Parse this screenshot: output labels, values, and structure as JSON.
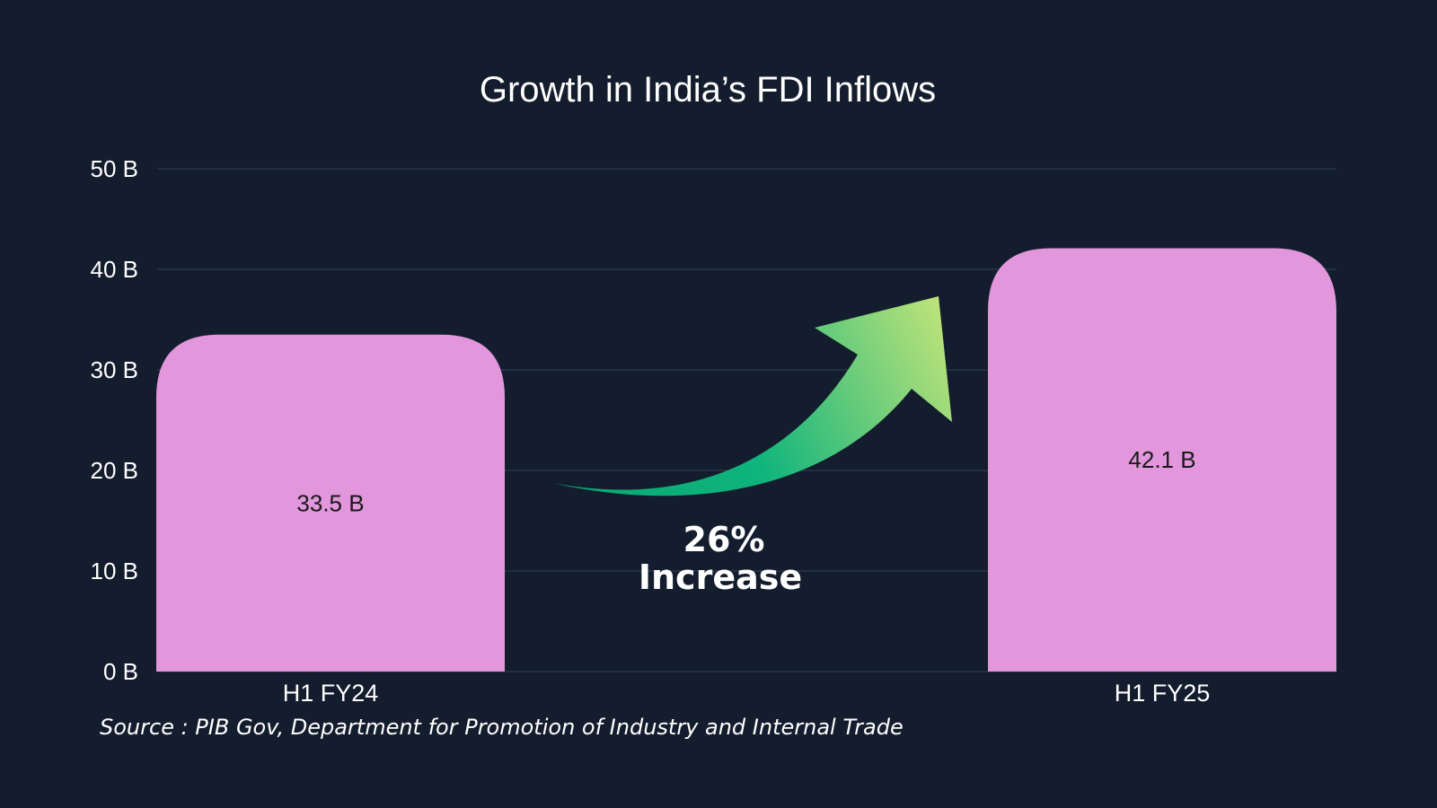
{
  "chart_data": {
    "type": "bar",
    "title": "Growth in India’s FDI Inflows",
    "categories": [
      "H1 FY24",
      "H1 FY25"
    ],
    "values": [
      33.5,
      42.1
    ],
    "value_labels": [
      "33.5 B",
      "42.1 B"
    ],
    "unit": "B",
    "ylim": [
      0,
      50
    ],
    "yticks": [
      0,
      10,
      20,
      30,
      40,
      50
    ],
    "ytick_labels": [
      "0 B",
      "10 B",
      "20 B",
      "30 B",
      "40 B",
      "50 B"
    ],
    "grid": true,
    "legend": "none",
    "annotation": {
      "percent": "26%",
      "text": "Increase",
      "arrow": "curved-up-right"
    },
    "source": "Source : PIB Gov, Department for Promotion of Industry and Internal Trade"
  },
  "colors": {
    "background": "#141d2d",
    "bar": "#e296dc",
    "grid": "#2e3a4e",
    "text": "#ffffff",
    "bar_label": "#1a1a1a",
    "arrow_start": "#0aa874",
    "arrow_end": "#c5e57a"
  }
}
